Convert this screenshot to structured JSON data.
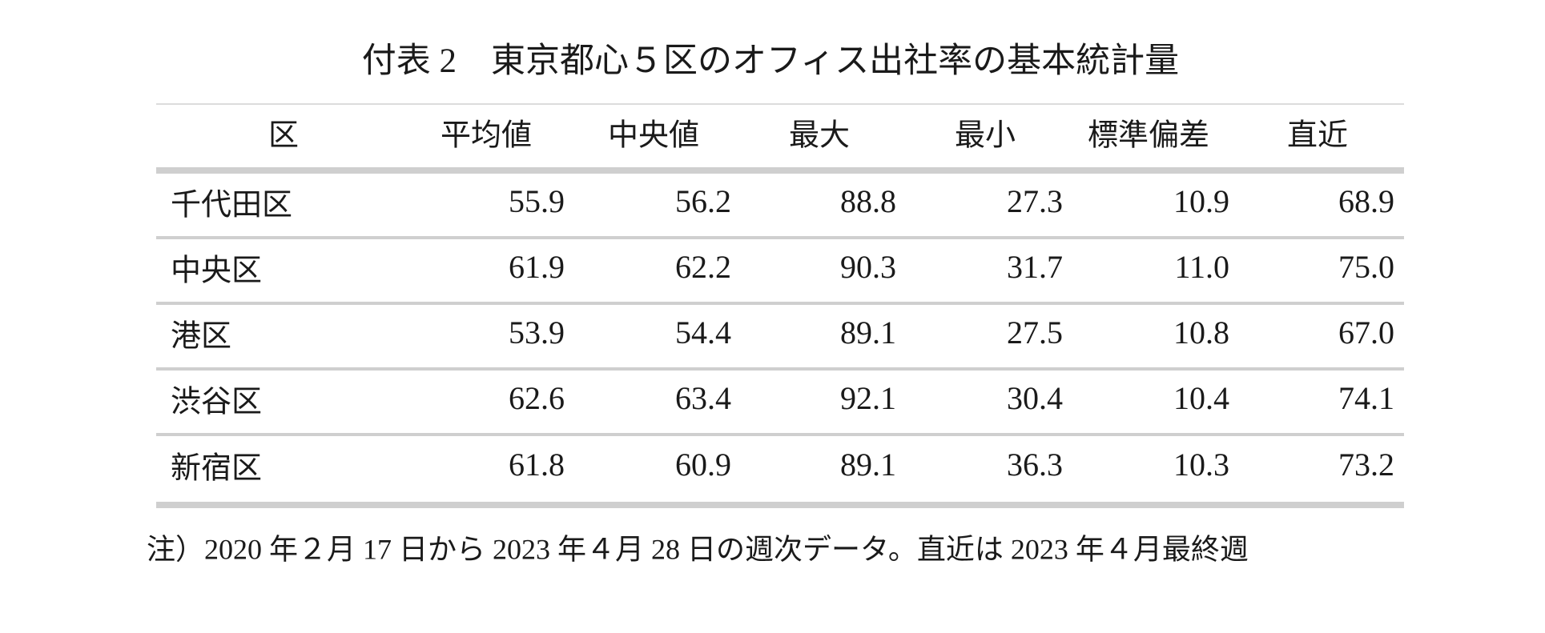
{
  "title": "付表 2　東京都心５区のオフィス出社率の基本統計量",
  "table": {
    "header": [
      "区",
      "平均値",
      "中央値",
      "最大",
      "最小",
      "標準偏差",
      "直近"
    ],
    "rows": [
      [
        "千代田区",
        "55.9",
        "56.2",
        "88.8",
        "27.3",
        "10.9",
        "68.9"
      ],
      [
        "中央区",
        "61.9",
        "62.2",
        "90.3",
        "31.7",
        "11.0",
        "75.0"
      ],
      [
        "港区",
        "53.9",
        "54.4",
        "89.1",
        "27.5",
        "10.8",
        "67.0"
      ],
      [
        "渋谷区",
        "62.6",
        "63.4",
        "92.1",
        "30.4",
        "10.4",
        "74.1"
      ],
      [
        "新宿区",
        "61.8",
        "60.9",
        "89.1",
        "36.3",
        "10.3",
        "73.2"
      ]
    ]
  },
  "note": "注）2020 年２月 17 日から 2023 年４月 28 日の週次データ。直近は 2023 年４月最終週"
}
